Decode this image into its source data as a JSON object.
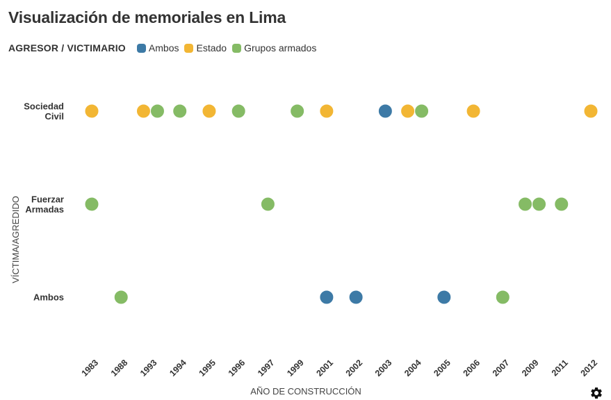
{
  "title": "Visualización de memoriales en Lima",
  "legend": {
    "title": "AGRESOR / VICTIMARIO",
    "items": [
      {
        "label": "Ambos",
        "color": "#3d7aa6"
      },
      {
        "label": "Estado",
        "color": "#f2b634"
      },
      {
        "label": "Grupos armados",
        "color": "#85bb65"
      }
    ]
  },
  "settings_icon": "gear-icon",
  "chart_data": {
    "type": "scatter",
    "xlabel": "AÑO DE CONSTRUCCIÓN",
    "ylabel": "VÍCTIMA/AGREDIDO",
    "x_categories": [
      "1983",
      "1988",
      "1993",
      "1994",
      "1995",
      "1996",
      "1997",
      "1999",
      "2001",
      "2002",
      "2003",
      "2004",
      "2005",
      "2006",
      "2007",
      "2009",
      "2011",
      "2012"
    ],
    "y_categories": [
      "Sociedad Civil",
      "Fuerzar Armadas",
      "Ambos"
    ],
    "series": [
      {
        "name": "Ambos",
        "color": "#3d7aa6",
        "points": [
          {
            "x": "2003",
            "y": "Sociedad Civil"
          },
          {
            "x": "2001",
            "y": "Ambos"
          },
          {
            "x": "2002",
            "y": "Ambos"
          },
          {
            "x": "2005",
            "y": "Ambos"
          }
        ]
      },
      {
        "name": "Estado",
        "color": "#f2b634",
        "points": [
          {
            "x": "1983",
            "y": "Sociedad Civil"
          },
          {
            "x": "1993",
            "y": "Sociedad Civil"
          },
          {
            "x": "1995",
            "y": "Sociedad Civil"
          },
          {
            "x": "2001",
            "y": "Sociedad Civil"
          },
          {
            "x": "2004",
            "y": "Sociedad Civil"
          },
          {
            "x": "2006",
            "y": "Sociedad Civil"
          },
          {
            "x": "2012",
            "y": "Sociedad Civil"
          }
        ]
      },
      {
        "name": "Grupos armados",
        "color": "#85bb65",
        "points": [
          {
            "x": "1993",
            "y": "Sociedad Civil"
          },
          {
            "x": "1994",
            "y": "Sociedad Civil"
          },
          {
            "x": "1996",
            "y": "Sociedad Civil"
          },
          {
            "x": "1999",
            "y": "Sociedad Civil"
          },
          {
            "x": "2004",
            "y": "Sociedad Civil"
          },
          {
            "x": "1983",
            "y": "Fuerzar Armadas"
          },
          {
            "x": "1997",
            "y": "Fuerzar Armadas"
          },
          {
            "x": "2009",
            "y": "Fuerzar Armadas"
          },
          {
            "x": "2009",
            "y": "Fuerzar Armadas"
          },
          {
            "x": "2011",
            "y": "Fuerzar Armadas"
          },
          {
            "x": "1988",
            "y": "Ambos"
          },
          {
            "x": "2007",
            "y": "Ambos"
          }
        ]
      }
    ]
  }
}
